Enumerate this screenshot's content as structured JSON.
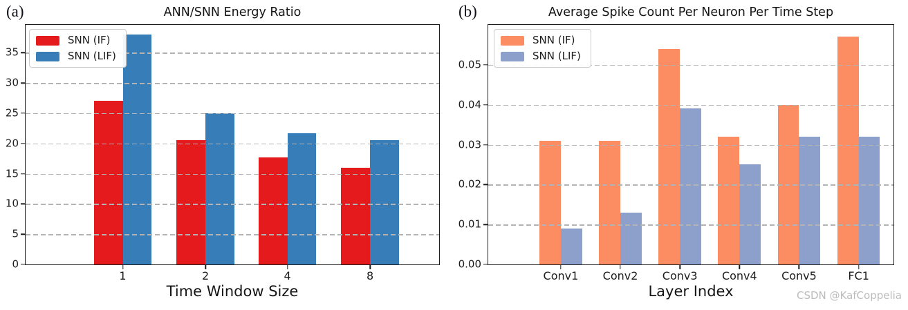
{
  "figure": {
    "panel_labels": {
      "a": "(a)",
      "b": "(b)"
    },
    "watermark": "CSDN @KafCoppelia",
    "watermark_color": "#bbbbbb",
    "background": "#ffffff"
  },
  "chart_data": [
    {
      "type": "bar",
      "title": "ANN/SNN Energy Ratio",
      "xlabel": "Time Window Size",
      "ylabel": "",
      "categories": [
        "1",
        "2",
        "4",
        "8"
      ],
      "series": [
        {
          "name": "SNN (IF)",
          "color": "#e41a1c",
          "values": [
            27.0,
            20.6,
            17.7,
            16.0
          ]
        },
        {
          "name": "SNN (LIF)",
          "color": "#377eb8",
          "values": [
            38.0,
            25.0,
            21.7,
            20.6
          ]
        }
      ],
      "ylim": [
        0,
        39.6
      ],
      "ytick_values": [
        0,
        5,
        10,
        15,
        20,
        25,
        30,
        35
      ],
      "ytick_labels": [
        "0",
        "5",
        "10",
        "15",
        "20",
        "25",
        "30",
        "35"
      ],
      "grid": true,
      "gridline_style": "dashed",
      "gridline_color": "#b3b3b3",
      "legend_position": "upper left"
    },
    {
      "type": "bar",
      "title": "Average Spike Count Per Neuron Per Time Step",
      "xlabel": "Layer Index",
      "ylabel": "",
      "categories": [
        "Conv1",
        "Conv2",
        "Conv3",
        "Conv4",
        "Conv5",
        "FC1"
      ],
      "series": [
        {
          "name": "SNN (IF)",
          "color": "#fc8d62",
          "values": [
            0.031,
            0.031,
            0.054,
            0.032,
            0.04,
            0.057
          ]
        },
        {
          "name": "SNN (LIF)",
          "color": "#8da0cb",
          "values": [
            0.009,
            0.013,
            0.039,
            0.025,
            0.032,
            0.032
          ]
        }
      ],
      "ylim": [
        0,
        0.06
      ],
      "ytick_values": [
        0,
        0.01,
        0.02,
        0.03,
        0.04,
        0.05
      ],
      "ytick_labels": [
        "0.00",
        "0.01",
        "0.02",
        "0.03",
        "0.04",
        "0.05"
      ],
      "grid": true,
      "gridline_style": "dashed",
      "gridline_color": "#b3b3b3",
      "legend_position": "upper left"
    }
  ]
}
